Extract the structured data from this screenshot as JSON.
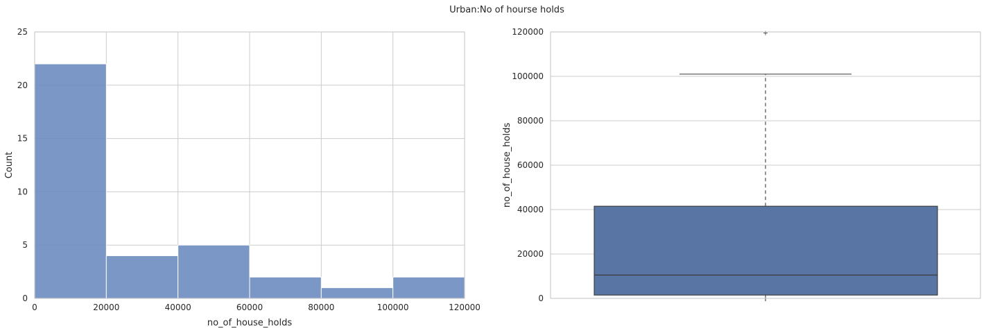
{
  "figure_title": "Urban:No of hourse holds",
  "chart_data": [
    {
      "type": "bar",
      "subtype": "histogram",
      "xlabel": "no_of_house_holds",
      "ylabel": "Count",
      "xlim": [
        0,
        120000
      ],
      "ylim": [
        0,
        25
      ],
      "xticks": [
        "0",
        "20000",
        "40000",
        "60000",
        "80000",
        "100000",
        "120000"
      ],
      "yticks": [
        "0",
        "5",
        "10",
        "15",
        "20",
        "25"
      ],
      "bins": [
        [
          0,
          20000
        ],
        [
          20000,
          40000
        ],
        [
          40000,
          60000
        ],
        [
          60000,
          80000
        ],
        [
          80000,
          100000
        ],
        [
          100000,
          120000
        ]
      ],
      "values": [
        22,
        4,
        5,
        2,
        1,
        2
      ],
      "color": "#6b8cc0",
      "grid": true
    },
    {
      "type": "box",
      "xlabel": "",
      "ylabel": "no_of_house_holds",
      "ylim": [
        0,
        120000
      ],
      "yticks": [
        "0",
        "20000",
        "40000",
        "60000",
        "80000",
        "100000",
        "120000"
      ],
      "box": {
        "whisker_low": 0,
        "q1": 1500,
        "median": 10500,
        "q3": 41500,
        "whisker_high": 101000,
        "outliers": [
          119500
        ]
      },
      "color": "#5875a4",
      "grid": true
    }
  ]
}
